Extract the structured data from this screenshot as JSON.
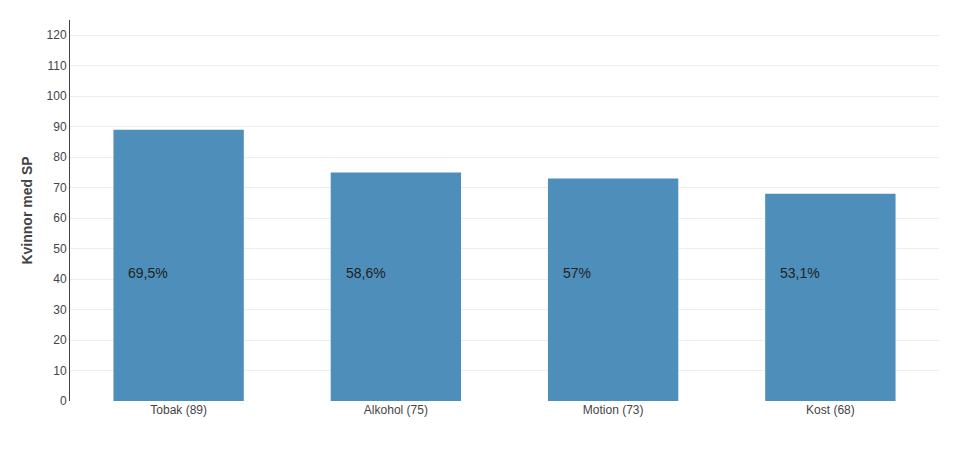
{
  "chart_data": {
    "type": "bar",
    "categories": [
      "Tobak (89)",
      "Alkohol (75)",
      "Motion (73)",
      "Kost (68)"
    ],
    "values": [
      89,
      75,
      73,
      68
    ],
    "color": "#4D8EBA",
    "ylabel": "Kvinnor med SP",
    "ylim": [
      0,
      125
    ],
    "yticks": [
      0,
      10,
      20,
      30,
      40,
      50,
      60,
      70,
      80,
      90,
      100,
      110,
      120
    ],
    "grid": true,
    "annotations": [
      {
        "x": "Tobak (89)",
        "y": 42,
        "text": "69,5%"
      },
      {
        "x": "Alkohol (75)",
        "y": 42,
        "text": "58,6%"
      },
      {
        "x": "Motion (73)",
        "y": 42,
        "text": "57%"
      },
      {
        "x": "Kost (68)",
        "y": 42,
        "text": "53,1%"
      }
    ]
  }
}
